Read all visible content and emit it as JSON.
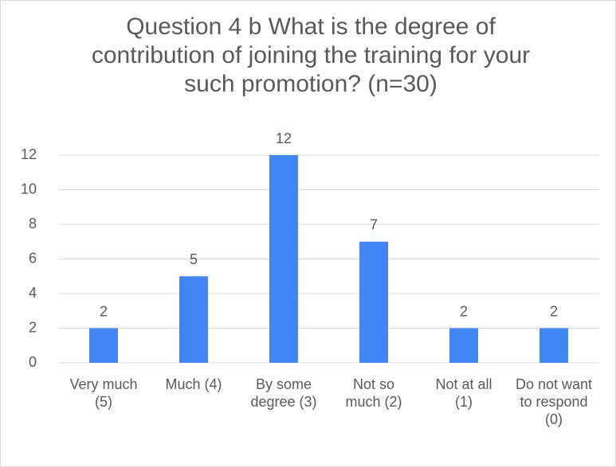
{
  "chart_data": {
    "type": "bar",
    "title": "Question 4 b  What is the degree of contribution of joining the training for your such promotion? (n=30)",
    "categories": [
      "Very much (5)",
      "Much (4)",
      "By some degree (3)",
      "Not so much (2)",
      "Not at all (1)",
      "Do not want to respond (0)"
    ],
    "values": [
      2,
      5,
      12,
      7,
      2,
      2
    ],
    "color": "#4285f4",
    "ylim": [
      0,
      12
    ],
    "yticks": [
      0,
      2,
      4,
      6,
      8,
      10,
      12
    ],
    "grid": true
  }
}
